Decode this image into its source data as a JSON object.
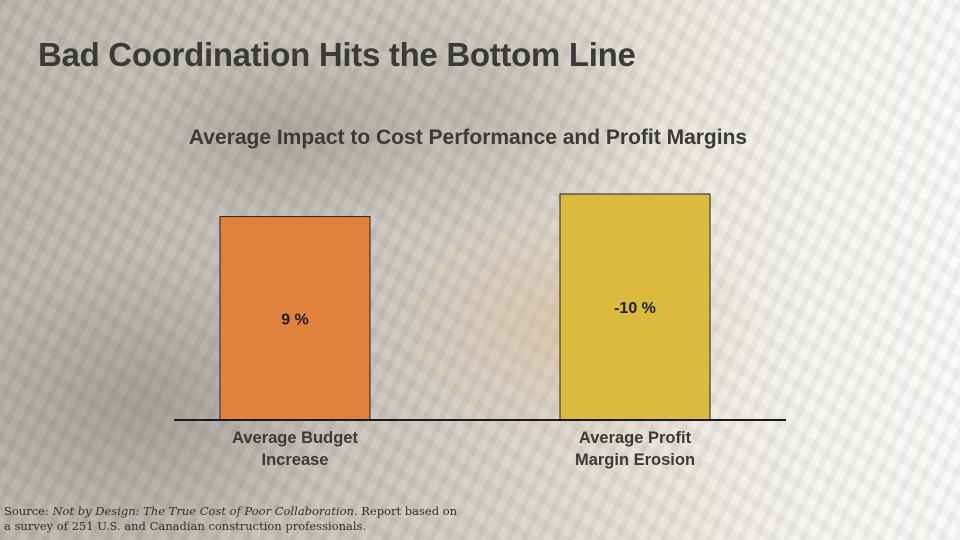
{
  "title": "Bad Coordination Hits the Bottom Line",
  "source": {
    "prefix": "Source: ",
    "publication": "Not by Design: The True Cost of Poor Collaboration.",
    "suffix": " Report based on a survey of 251 U.S. and Canadian construction professionals."
  },
  "colors": {
    "bar_budget": "#e0823c",
    "bar_profit": "#dcba3e",
    "axis": "#1a1a1a",
    "text": "#3a3a3a"
  },
  "chart_data": {
    "type": "bar",
    "title": "Average Impact to Cost Performance and Profit Margins",
    "categories": [
      [
        "Average Budget",
        "Increase"
      ],
      [
        "Average Profit",
        "Margin Erosion"
      ]
    ],
    "values": [
      9,
      -10
    ],
    "data_labels": [
      "9 %",
      "-10 %"
    ],
    "unit": "%",
    "grid": false,
    "legend": "none"
  }
}
